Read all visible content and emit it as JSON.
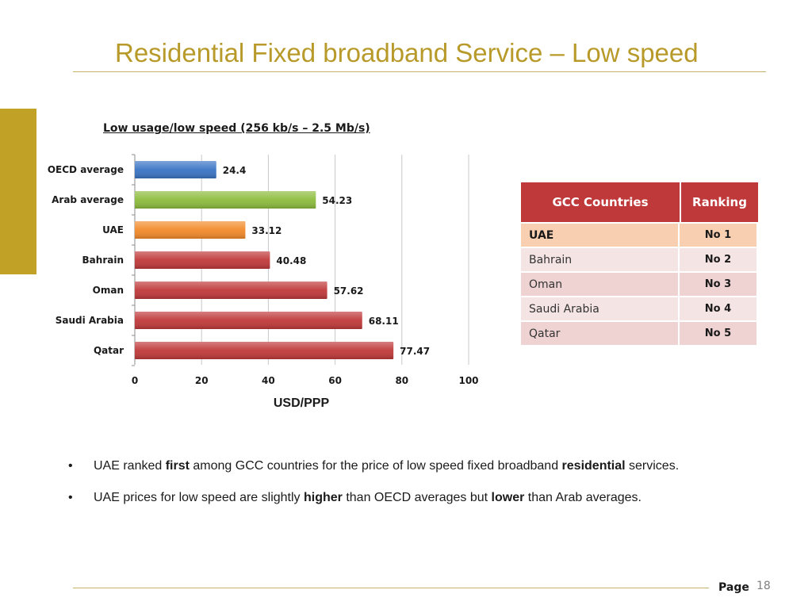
{
  "slide": {
    "title": "Residential Fixed broadband Service – Low speed",
    "page_label": "Page",
    "page_number": "18"
  },
  "colors": {
    "title": "#b89a2a",
    "side_block": "#c2a127",
    "oecd_bar": "#3a74c4",
    "arab_bar": "#8cbc3c",
    "uae_bar": "#f28a2a",
    "gcc_bar": "#c0393a",
    "table_header": "#c0393a"
  },
  "chart_data": {
    "type": "bar",
    "orientation": "horizontal",
    "title": "Low usage/low speed (256 kb/s – 2.5 Mb/s)",
    "xlabel": "USD/PPP",
    "ylabel": "",
    "categories": [
      "OECD average",
      "Arab average",
      "UAE",
      "Bahrain",
      "Oman",
      "Saudi Arabia",
      "Qatar"
    ],
    "values": [
      24.4,
      54.23,
      33.12,
      40.48,
      57.62,
      68.11,
      77.47
    ],
    "data_labels": [
      "24.4",
      "54.23",
      "33.12",
      "40.48",
      "57.62",
      "68.11",
      "77.47"
    ],
    "bar_colors": [
      "#3a74c4",
      "#8cbc3c",
      "#f28a2a",
      "#c0393a",
      "#c0393a",
      "#c0393a",
      "#c0393a"
    ],
    "xlim": [
      0,
      100
    ],
    "xticks": [
      0,
      20,
      40,
      60,
      80,
      100
    ],
    "grid": "vertical"
  },
  "gcc_table": {
    "headers": [
      "GCC Countries",
      "Ranking"
    ],
    "rows": [
      {
        "country": "UAE",
        "rank": "No 1"
      },
      {
        "country": "Bahrain",
        "rank": "No 2"
      },
      {
        "country": "Oman",
        "rank": "No 3"
      },
      {
        "country": "Saudi Arabia",
        "rank": "No 4"
      },
      {
        "country": "Qatar",
        "rank": "No 5"
      }
    ]
  },
  "bullets": [
    {
      "dot": "•",
      "pre": "UAE ranked ",
      "b1": "first",
      "mid": " among GCC countries for the price of low speed fixed broadband ",
      "b2": "residential",
      "post": " services."
    },
    {
      "dot": "•",
      "pre": "UAE prices for low speed are slightly ",
      "b1": "higher",
      "mid": " than OECD averages but ",
      "b2": "lower",
      "post": " than Arab averages."
    }
  ]
}
